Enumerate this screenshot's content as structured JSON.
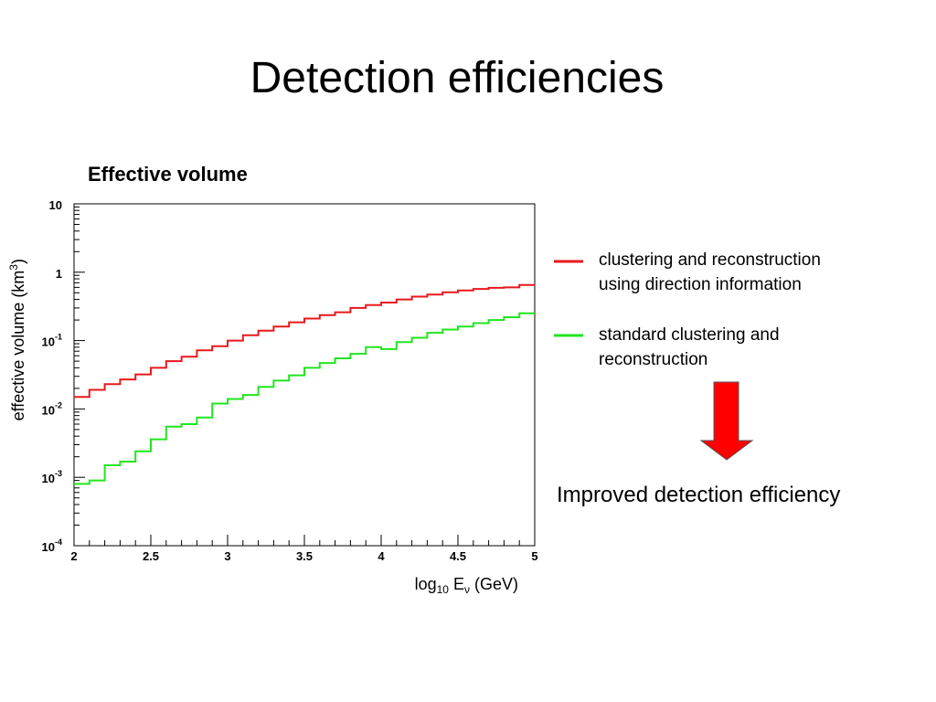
{
  "slide": {
    "title": "Detection efficiencies",
    "conclusion": "Improved detection efficiency"
  },
  "chart_data": {
    "type": "line",
    "step": true,
    "title": "Effective volume",
    "xlabel": {
      "base": "log",
      "sub": "10",
      "mid": " E",
      "nu": "ν",
      "unit": " (GeV)"
    },
    "ylabel": {
      "base": "effective volume (km",
      "sup": "3",
      "end": ")"
    },
    "xlim": [
      2,
      5
    ],
    "ylim": [
      0.0001,
      10
    ],
    "yscale": "log",
    "xticks": [
      "2",
      "2.5",
      "3",
      "3.5",
      "4",
      "4.5",
      "5"
    ],
    "yticks": [
      {
        "base": "10",
        "exp": "-4"
      },
      {
        "base": "10",
        "exp": "-3"
      },
      {
        "base": "10",
        "exp": "-2"
      },
      {
        "base": "10",
        "exp": "-1"
      },
      {
        "base": "1",
        "exp": ""
      },
      {
        "base": "10",
        "exp": ""
      }
    ],
    "grid": false,
    "legend": "right",
    "bin_edges": [
      2.0,
      2.1,
      2.2,
      2.3,
      2.4,
      2.5,
      2.6,
      2.7,
      2.8,
      2.9,
      3.0,
      3.1,
      3.2,
      3.3,
      3.4,
      3.5,
      3.6,
      3.7,
      3.8,
      3.9,
      4.0,
      4.1,
      4.2,
      4.3,
      4.4,
      4.5,
      4.6,
      4.7,
      4.8,
      4.9,
      5.0
    ],
    "series": [
      {
        "name": "clustering and reconstruction using direction information",
        "legend_lines": [
          "clustering and reconstruction",
          "using direction information"
        ],
        "color": "#e8191c",
        "values": [
          0.015,
          0.019,
          0.023,
          0.027,
          0.032,
          0.04,
          0.05,
          0.058,
          0.072,
          0.083,
          0.1,
          0.12,
          0.14,
          0.16,
          0.185,
          0.21,
          0.235,
          0.26,
          0.3,
          0.33,
          0.36,
          0.4,
          0.44,
          0.47,
          0.51,
          0.54,
          0.57,
          0.59,
          0.6,
          0.65
        ]
      },
      {
        "name": "standard clustering and reconstruction",
        "legend_lines": [
          "standard clustering and",
          "reconstruction"
        ],
        "color": "#21e51f",
        "values": [
          0.0008,
          0.0009,
          0.0015,
          0.0017,
          0.0024,
          0.0036,
          0.0055,
          0.006,
          0.0075,
          0.012,
          0.014,
          0.016,
          0.021,
          0.026,
          0.031,
          0.04,
          0.047,
          0.055,
          0.064,
          0.08,
          0.075,
          0.095,
          0.11,
          0.13,
          0.145,
          0.16,
          0.18,
          0.2,
          0.22,
          0.25
        ]
      }
    ]
  },
  "arrow": {
    "color": "#ff0000"
  }
}
